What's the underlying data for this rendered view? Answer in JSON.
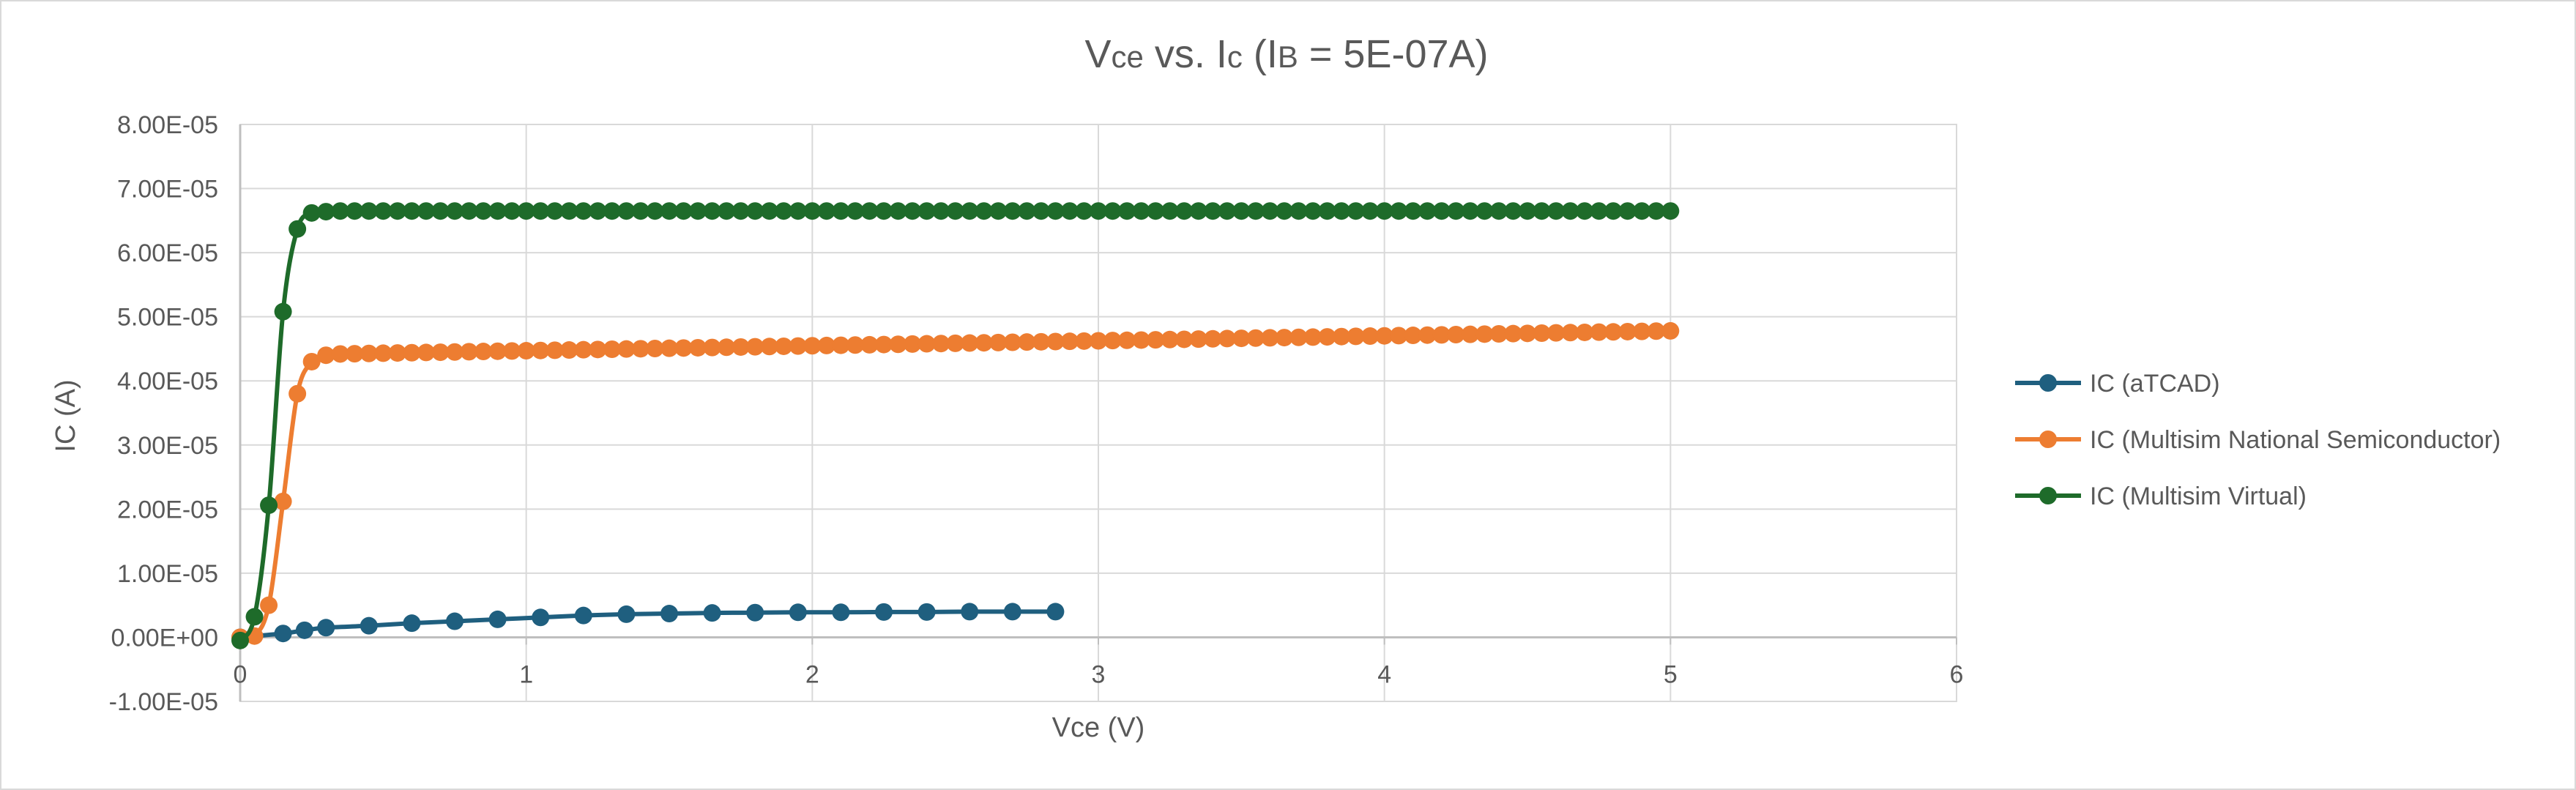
{
  "chart_data": {
    "type": "scatter",
    "title": {
      "part1": "V",
      "part1_sub": "ce",
      "part2": " vs. I",
      "part2_sub": "c",
      "part3": " (I",
      "part3_sub": "B",
      "part4": " = 5E-07A)"
    },
    "xlabel": "Vce (V)",
    "ylabel": "IC (A)",
    "xlim": [
      0,
      6
    ],
    "ylim": [
      -1e-05,
      8e-05
    ],
    "x_ticks": [
      0,
      1,
      2,
      3,
      4,
      5,
      6
    ],
    "x_tick_labels": [
      "0",
      "1",
      "2",
      "3",
      "4",
      "5",
      "6"
    ],
    "y_ticks": [
      -1e-05,
      0,
      1e-05,
      2e-05,
      3e-05,
      4e-05,
      5e-05,
      6e-05,
      7e-05,
      8e-05
    ],
    "y_tick_labels": [
      "-1.00E-05",
      "0.00E+00",
      "1.00E-05",
      "2.00E-05",
      "3.00E-05",
      "4.00E-05",
      "5.00E-05",
      "6.00E-05",
      "7.00E-05",
      "8.00E-05"
    ],
    "grid": true,
    "legend_position": "right",
    "series": [
      {
        "name": "IC (aTCAD)",
        "color": "#1f5f7f",
        "x": [
          0,
          0.15,
          0.225,
          0.3,
          0.45,
          0.6,
          0.75,
          0.9,
          1.05,
          1.2,
          1.35,
          1.5,
          1.65,
          1.8,
          1.95,
          2.1,
          2.25,
          2.4,
          2.55,
          2.7,
          2.85
        ],
        "y": [
          0,
          6e-07,
          1.1e-06,
          1.5e-06,
          1.8e-06,
          2.2e-06,
          2.5e-06,
          2.8e-06,
          3.1e-06,
          3.4e-06,
          3.6e-06,
          3.7e-06,
          3.8e-06,
          3.85e-06,
          3.9e-06,
          3.9e-06,
          3.95e-06,
          3.95e-06,
          4e-06,
          4e-06,
          4e-06
        ]
      },
      {
        "name": "IC (Multisim National Semiconductor)",
        "color": "#ed7d31",
        "start_x": 0,
        "step_x": 0.05,
        "head_y": [
          0,
          2e-07,
          5e-06,
          2.12e-05,
          3.8e-05,
          4.3e-05,
          4.4e-05
        ],
        "tail_start_y": 4.42e-05,
        "tail_end_y": 4.78e-05,
        "end_x": 5
      },
      {
        "name": "IC (Multisim Virtual)",
        "color": "#1e6b2a",
        "start_x": 0,
        "step_x": 0.05,
        "head_y": [
          -5e-07,
          3.2e-06,
          2.06e-05,
          5.08e-05,
          6.37e-05,
          6.62e-05,
          6.64e-05
        ],
        "tail_start_y": 6.65e-05,
        "tail_end_y": 6.65e-05,
        "end_x": 5
      }
    ]
  }
}
